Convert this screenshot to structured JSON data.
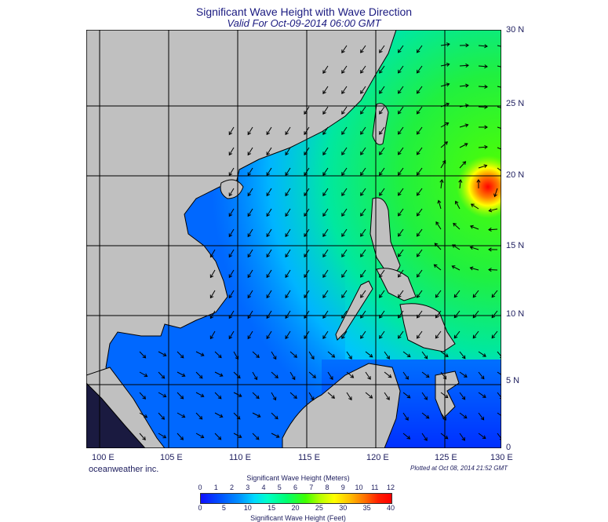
{
  "title": "Significant Wave Height with Wave Direction",
  "subtitle": "Valid For Oct-09-2014 06:00 GMT",
  "credit": "oceanweather inc.",
  "plotted": "Plotted at Oct 08, 2014 21:52 GMT",
  "lat_labels": [
    "30 N",
    "25 N",
    "20 N",
    "15 N",
    "10 N",
    "5 N",
    "0"
  ],
  "lon_labels": [
    "100 E",
    "105 E",
    "110 E",
    "115 E",
    "120 E",
    "125 E",
    "130 E"
  ],
  "colorbar": {
    "title_meters": "Significant Wave Height (Meters)",
    "title_feet": "Significant Wave Height (Feet)",
    "meters_ticks": [
      "0",
      "1",
      "2",
      "3",
      "4",
      "5",
      "6",
      "7",
      "8",
      "9",
      "10",
      "11",
      "12"
    ],
    "feet_ticks": [
      "0",
      "5",
      "10",
      "15",
      "20",
      "25",
      "30",
      "35",
      "40"
    ]
  },
  "colors": {
    "land": "#c0c0c0",
    "deep_blue": "#1010ff",
    "mid_blue": "#0060ff",
    "cyan": "#00d8ff",
    "green": "#20e020",
    "red": "#ff2000"
  }
}
